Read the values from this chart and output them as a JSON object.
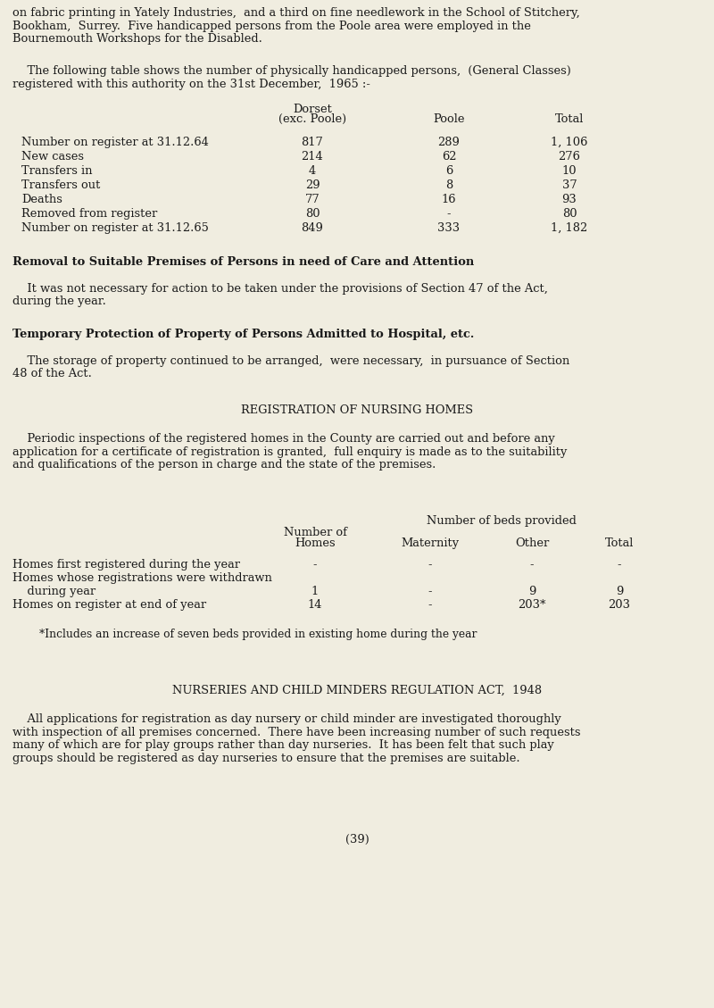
{
  "bg_color": "#f0ede0",
  "text_color": "#1a1a1a",
  "para1": "on fabric printing in Yately Industries,  and a third on fine needlework in the School of Stitchery,",
  "para1b": "Bookham,  Surrey.  Five handicapped persons from the Poole area were employed in the",
  "para1c": "Bournemouth Workshops for the Disabled.",
  "para2": "    The following table shows the number of physically handicapped persons,  (General Classes)",
  "para2b": "registered with this authority on the 31st December,  1965 :-",
  "table1_col_header1": "Dorset",
  "table1_col_header1b": "(exc. Poole)",
  "table1_col_header2": "Poole",
  "table1_col_header3": "Total",
  "table1_rows": [
    [
      "Number on register at 31.12.64",
      "817",
      "289",
      "1, 106"
    ],
    [
      "New cases",
      "214",
      "62",
      "276"
    ],
    [
      "Transfers in",
      "4",
      "6",
      "10"
    ],
    [
      "Transfers out",
      "29",
      "8",
      "37"
    ],
    [
      "Deaths",
      "77",
      "16",
      "93"
    ],
    [
      "Removed from register",
      "80",
      "-",
      "80"
    ],
    [
      "Number on register at 31.12.65",
      "849",
      "333",
      "1, 182"
    ]
  ],
  "heading2": "Removal to Suitable Premises of Persons in need of Care and Attention",
  "para3": "    It was not necessary for action to be taken under the provisions of Section 47 of the Act,",
  "para3b": "during the year.",
  "heading3": "Temporary Protection of Property of Persons Admitted to Hospital, etc.",
  "para4": "    The storage of property continued to be arranged,  were necessary,  in pursuance of Section",
  "para4b": "48 of the Act.",
  "heading4": "REGISTRATION OF NURSING HOMES",
  "para5": "    Periodic inspections of the registered homes in the County are carried out and before any",
  "para5b": "application for a certificate of registration is granted,  full enquiry is made as to the suitability",
  "para5c": "and qualifications of the person in charge and the state of the premises.",
  "table2_header_top": "Number of beds provided",
  "table2_col_header1": "Number of",
  "table2_col_header1b": "Homes",
  "table2_col_header2": "Maternity",
  "table2_col_header3": "Other",
  "table2_col_header4": "Total",
  "table2_row1_label": "Homes first registered during the year",
  "table2_row1_vals": [
    "-",
    "-",
    "-",
    "-"
  ],
  "table2_row2_label": "Homes whose registrations were withdrawn",
  "table2_row2_vals": [
    "",
    "",
    "",
    ""
  ],
  "table2_row3_label": "    during year",
  "table2_row3_vals": [
    "1",
    "-",
    "9",
    "9"
  ],
  "table2_row4_label": "Homes on register at end of year",
  "table2_row4_vals": [
    "14",
    "-",
    "203*",
    "203"
  ],
  "footnote": "*Includes an increase of seven beds provided in existing home during the year",
  "heading5": "NURSERIES AND CHILD MINDERS REGULATION ACT,  1948",
  "para6": "    All applications for registration as day nursery or child minder are investigated thoroughly",
  "para6b": "with inspection of all premises concerned.  There have been increasing number of such requests",
  "para6c": "many of which are for play groups rather than day nurseries.  It has been felt that such play",
  "para6d": "groups should be registered as day nurseries to ensure that the premises are suitable.",
  "page_number": "(39)"
}
